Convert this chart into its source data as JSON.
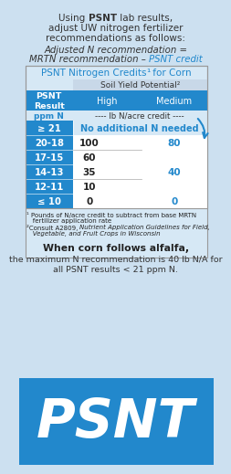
{
  "bg_color": "#cce0f0",
  "table_bg": "#d6e8f5",
  "header_row_bg": "#c8d8e8",
  "blue_row_bg": "#2288cc",
  "blue_row_text": "#ffffff",
  "table_title_color": "#2288cc",
  "psnt_credit_color": "#2288cc",
  "arrow_color": "#2288cc",
  "psnt_big_bg": "#2288cc",
  "rows": [
    {
      "psnt": "≥ 21",
      "high": "No additional N needed",
      "medium": "",
      "span": true
    },
    {
      "psnt": "20-18",
      "high": "100",
      "medium": "80",
      "medium_span": true
    },
    {
      "psnt": "17-15",
      "high": "60",
      "medium": "",
      "medium_span": false
    },
    {
      "psnt": "14-13",
      "high": "35",
      "medium": "40",
      "medium_span": true
    },
    {
      "psnt": "12-11",
      "high": "10",
      "medium": "",
      "medium_span": false
    },
    {
      "psnt": "≤ 10",
      "high": "0",
      "medium": "0",
      "medium_span": false
    }
  ],
  "footnote1a": "¹ Pounds of N/acre credit to subtract from base MRTN",
  "footnote1b": "   fertilizer application rate",
  "footnote2a": "²Consult A2809, ",
  "footnote2b": "Nutrient Application Guidelines for Field,",
  "footnote2c": "   Vegetable, and Fruit Crops in Wisconsin",
  "bottom_bold": "When corn follows alfalfa,",
  "bottom_text2": "the maximum N recommendation is 40 lb N/A for",
  "bottom_text3": "all PSNT results < 21 ppm N."
}
